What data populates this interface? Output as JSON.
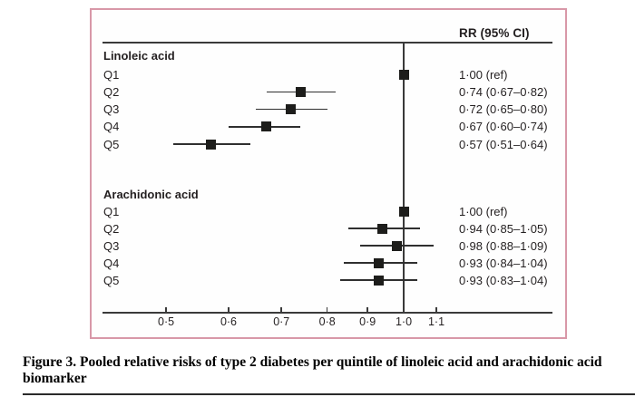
{
  "figure": {
    "caption": "Figure 3. Pooled relative risks of type 2 diabetes per quintile of linoleic acid and arachidonic acid biomarker"
  },
  "colors": {
    "frame_border": "#d898a8",
    "axis_line": "#3a3a3a",
    "marker": "#1d1d1b",
    "text": "#231f20"
  },
  "chart_data": {
    "type": "forest",
    "column_header": "RR (95% CI)",
    "x_axis": {
      "scale": "log",
      "reference_value": 1.0,
      "range": [
        0.45,
        1.15
      ],
      "ticks": [
        0.5,
        0.6,
        0.7,
        0.8,
        0.9,
        1.0,
        1.1
      ],
      "tick_labels": [
        "0·5",
        "0·6",
        "0·7",
        "0·8",
        "0·9",
        "1·0",
        "1·1"
      ]
    },
    "groups": [
      {
        "label": "Linoleic acid",
        "rows": [
          {
            "label": "Q1",
            "rr": 1.0,
            "ci_low": null,
            "ci_high": null,
            "text": "1·00 (ref)"
          },
          {
            "label": "Q2",
            "rr": 0.74,
            "ci_low": 0.67,
            "ci_high": 0.82,
            "text": "0·74 (0·67–0·82)"
          },
          {
            "label": "Q3",
            "rr": 0.72,
            "ci_low": 0.65,
            "ci_high": 0.8,
            "text": "0·72 (0·65–0·80)"
          },
          {
            "label": "Q4",
            "rr": 0.67,
            "ci_low": 0.6,
            "ci_high": 0.74,
            "text": "0·67 (0·60–0·74)"
          },
          {
            "label": "Q5",
            "rr": 0.57,
            "ci_low": 0.51,
            "ci_high": 0.64,
            "text": "0·57 (0·51–0·64)"
          }
        ]
      },
      {
        "label": "Arachidonic acid",
        "rows": [
          {
            "label": "Q1",
            "rr": 1.0,
            "ci_low": null,
            "ci_high": null,
            "text": "1·00 (ref)"
          },
          {
            "label": "Q2",
            "rr": 0.94,
            "ci_low": 0.85,
            "ci_high": 1.05,
            "text": "0·94 (0·85–1·05)"
          },
          {
            "label": "Q3",
            "rr": 0.98,
            "ci_low": 0.88,
            "ci_high": 1.09,
            "text": "0·98 (0·88–1·09)"
          },
          {
            "label": "Q4",
            "rr": 0.93,
            "ci_low": 0.84,
            "ci_high": 1.04,
            "text": "0·93 (0·84–1·04)"
          },
          {
            "label": "Q5",
            "rr": 0.93,
            "ci_low": 0.83,
            "ci_high": 1.04,
            "text": "0·93 (0·83–1·04)"
          }
        ]
      }
    ]
  }
}
